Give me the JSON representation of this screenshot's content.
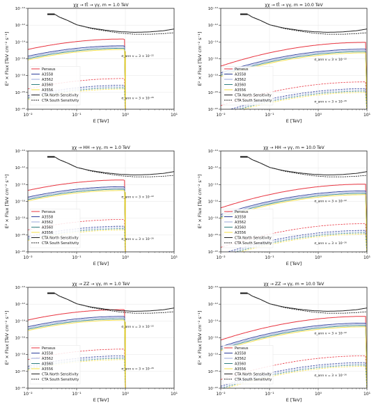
{
  "figure": {
    "xlabel": "E [TeV]",
    "ylabel": "E² × Flux [TeV cm⁻² s⁻¹]",
    "xticks": [
      "10⁻²",
      "10⁻¹",
      "10⁰",
      "10¹"
    ],
    "yticks": [
      "10⁻²²",
      "10⁻²⁰",
      "10⁻¹⁸",
      "10⁻¹⁶",
      "10⁻¹⁴",
      "10⁻¹²",
      "10⁻¹⁰"
    ],
    "legend": [
      {
        "label": "Perseus",
        "color": "#e8333f",
        "dash": "solid"
      },
      {
        "label": "A3558",
        "color": "#2b3d9a",
        "dash": "solid"
      },
      {
        "label": "A3562",
        "color": "#9aa7d8",
        "dash": "solid"
      },
      {
        "label": "A3560",
        "color": "#2f7f7f",
        "dash": "solid"
      },
      {
        "label": "A3556",
        "color": "#f5e043",
        "dash": "solid"
      },
      {
        "label": "CTA North Sensitivity",
        "color": "#222222",
        "dash": "solid"
      },
      {
        "label": "CTA South Sensitivity",
        "color": "#222222",
        "dash": "dashed"
      }
    ]
  },
  "chart_data": [
    {
      "type": "line",
      "title": "χχ → tt̄ → γγ, m = 1.0 TeV",
      "mass_TeV": 1.0,
      "annotations": [
        "σ_ann v = 3 × 10⁻²²",
        "σ_ann v = 3 × 10⁻²⁶"
      ],
      "xlim": [
        0.01,
        10
      ],
      "ylim": [
        1e-22,
        1e-10
      ],
      "xscale": "log",
      "yscale": "log",
      "legend_position": "lower-left"
    },
    {
      "type": "line",
      "title": "χχ → tt̄ → γγ, m = 10.0 TeV",
      "mass_TeV": 10.0,
      "annotations": [
        "σ_ann v = 3 × 10⁻²²",
        "σ_ann v = 3 × 10⁻²⁶"
      ],
      "xlim": [
        0.01,
        10
      ],
      "ylim": [
        1e-22,
        1e-10
      ],
      "xscale": "log",
      "yscale": "log",
      "legend_position": "lower-left"
    },
    {
      "type": "line",
      "title": "χχ → HH → γγ, m = 1.0 TeV",
      "mass_TeV": 1.0,
      "annotations": [
        "σ_ann v = 3 × 10⁻²²",
        "σ_ann v = 3 × 10⁻²⁶"
      ],
      "xlim": [
        0.01,
        10
      ],
      "ylim": [
        1e-22,
        1e-10
      ],
      "xscale": "log",
      "yscale": "log",
      "legend_position": "lower-left"
    },
    {
      "type": "line",
      "title": "χχ → HH → γγ, m = 10.0 TeV",
      "mass_TeV": 10.0,
      "annotations": [
        "σ_ann v = 3 × 10⁻²²",
        "σ_ann v = 3 × 10⁻²⁶"
      ],
      "xlim": [
        0.01,
        10
      ],
      "ylim": [
        1e-22,
        1e-10
      ],
      "xscale": "log",
      "yscale": "log",
      "legend_position": "lower-left"
    },
    {
      "type": "line",
      "title": "χχ → ZZ → γγ, m = 1.0 TeV",
      "mass_TeV": 1.0,
      "annotations": [
        "σ_ann v = 3 × 10⁻²²",
        "σ_ann v = 3 × 10⁻²⁶"
      ],
      "xlim": [
        0.01,
        10
      ],
      "ylim": [
        1e-22,
        1e-10
      ],
      "xscale": "log",
      "yscale": "log",
      "legend_position": "lower-left"
    },
    {
      "type": "line",
      "title": "χχ → ZZ → γγ, m = 10.0 TeV",
      "mass_TeV": 10.0,
      "annotations": [
        "σ_ann v = 3 × 10⁻²²",
        "σ_ann v = 3 × 10⁻²⁶"
      ],
      "xlim": [
        0.01,
        10
      ],
      "ylim": [
        1e-22,
        1e-10
      ],
      "xscale": "log",
      "yscale": "log",
      "legend_position": "lower-left"
    }
  ]
}
